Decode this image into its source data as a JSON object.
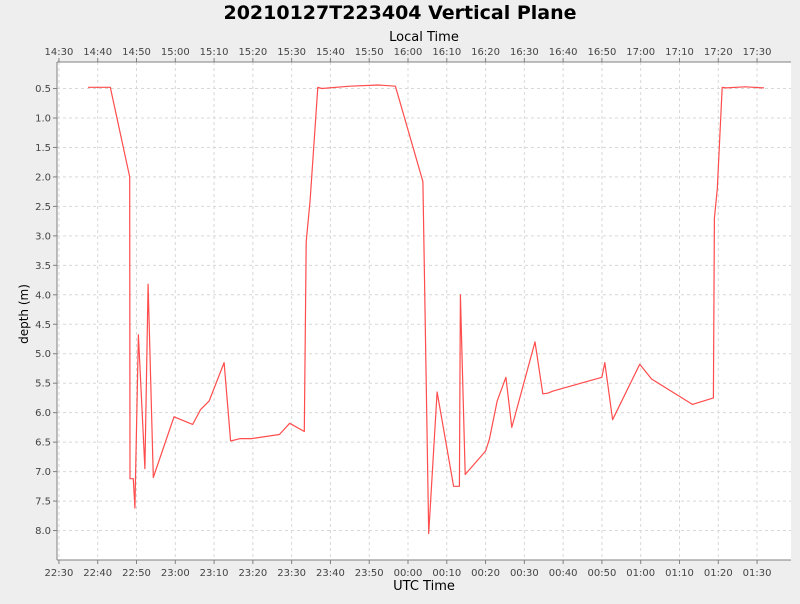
{
  "chart_data": {
    "type": "line",
    "title": "20210127T223404 Vertical Plane",
    "xlabel": "UTC Time",
    "x2label": "Local Time",
    "ylabel": "depth (m)",
    "x_ticks_utc": [
      "22:30",
      "22:40",
      "22:50",
      "23:00",
      "23:10",
      "23:20",
      "23:30",
      "23:40",
      "23:50",
      "00:00",
      "00:10",
      "00:20",
      "00:30",
      "00:40",
      "00:50",
      "01:00",
      "01:10",
      "01:20",
      "01:30"
    ],
    "x_ticks_local": [
      "14:30",
      "14:40",
      "14:50",
      "15:00",
      "15:10",
      "15:20",
      "15:30",
      "15:40",
      "15:50",
      "16:00",
      "16:10",
      "16:20",
      "16:30",
      "16:40",
      "16:50",
      "17:00",
      "17:10",
      "17:20",
      "17:30"
    ],
    "y_ticks": [
      "0.5",
      "1.0",
      "1.5",
      "2.0",
      "2.5",
      "3.0",
      "3.5",
      "4.0",
      "4.5",
      "5.0",
      "5.5",
      "6.0",
      "6.5",
      "7.0",
      "7.5",
      "8.0"
    ],
    "y_tick_values": [
      0.5,
      1.0,
      1.5,
      2.0,
      2.5,
      3.0,
      3.5,
      4.0,
      4.5,
      5.0,
      5.5,
      6.0,
      6.5,
      7.0,
      7.5,
      8.0
    ],
    "ylim": [
      0.05,
      8.5
    ],
    "y_inverted": true,
    "xlim": [
      "2021-01-27T22:29:30Z",
      "2021-01-28T01:38:45Z"
    ],
    "grid": true,
    "series": [
      {
        "color": "#ff4c4c",
        "points": [
          [
            "2021-01-27T22:37:30Z",
            0.48
          ],
          [
            "2021-01-27T22:43:15Z",
            0.48
          ],
          [
            "2021-01-27T22:47:45Z",
            1.85
          ],
          [
            "2021-01-27T22:48:15Z",
            2.0
          ],
          [
            "2021-01-27T22:48:20Z",
            7.12
          ],
          [
            "2021-01-27T22:49:10Z",
            7.12
          ],
          [
            "2021-01-27T22:49:35Z",
            7.62
          ],
          [
            "2021-01-27T22:50:30Z",
            4.68
          ],
          [
            "2021-01-27T22:52:10Z",
            6.95
          ],
          [
            "2021-01-27T22:53:00Z",
            3.82
          ],
          [
            "2021-01-27T22:54:20Z",
            7.1
          ],
          [
            "2021-01-27T22:59:40Z",
            6.07
          ],
          [
            "2021-01-27T23:04:30Z",
            6.2
          ],
          [
            "2021-01-27T23:06:30Z",
            5.95
          ],
          [
            "2021-01-27T23:08:45Z",
            5.8
          ],
          [
            "2021-01-27T23:12:35Z",
            5.15
          ],
          [
            "2021-01-27T23:14:15Z",
            6.48
          ],
          [
            "2021-01-27T23:16:45Z",
            6.44
          ],
          [
            "2021-01-27T23:19:40Z",
            6.44
          ],
          [
            "2021-01-27T23:26:50Z",
            6.37
          ],
          [
            "2021-01-27T23:29:30Z",
            6.18
          ],
          [
            "2021-01-27T23:33:15Z",
            6.32
          ],
          [
            "2021-01-27T23:33:45Z",
            3.1
          ],
          [
            "2021-01-27T23:34:45Z",
            2.4
          ],
          [
            "2021-01-27T23:36:45Z",
            0.48
          ],
          [
            "2021-01-27T23:37:45Z",
            0.5
          ],
          [
            "2021-01-27T23:45:00Z",
            0.46
          ],
          [
            "2021-01-27T23:52:20Z",
            0.44
          ],
          [
            "2021-01-27T23:56:45Z",
            0.46
          ],
          [
            "2021-01-28T00:03:50Z",
            2.08
          ],
          [
            "2021-01-28T00:05:20Z",
            8.05
          ],
          [
            "2021-01-28T00:07:30Z",
            5.65
          ],
          [
            "2021-01-28T00:11:45Z",
            7.25
          ],
          [
            "2021-01-28T00:13:15Z",
            7.25
          ],
          [
            "2021-01-28T00:13:30Z",
            4.0
          ],
          [
            "2021-01-28T00:14:45Z",
            7.05
          ],
          [
            "2021-01-28T00:20:00Z",
            6.65
          ],
          [
            "2021-01-28T00:21:00Z",
            6.45
          ],
          [
            "2021-01-28T00:23:00Z",
            5.8
          ],
          [
            "2021-01-28T00:25:15Z",
            5.4
          ],
          [
            "2021-01-28T00:26:45Z",
            6.25
          ],
          [
            "2021-01-28T00:32:45Z",
            4.8
          ],
          [
            "2021-01-28T00:34:45Z",
            5.68
          ],
          [
            "2021-01-28T00:36:00Z",
            5.67
          ],
          [
            "2021-01-28T00:37:30Z",
            5.63
          ],
          [
            "2021-01-28T00:50:00Z",
            5.4
          ],
          [
            "2021-01-28T00:50:45Z",
            5.15
          ],
          [
            "2021-01-28T00:52:45Z",
            6.12
          ],
          [
            "2021-01-28T00:59:45Z",
            5.18
          ],
          [
            "2021-01-28T01:02:50Z",
            5.43
          ],
          [
            "2021-01-28T01:13:20Z",
            5.86
          ],
          [
            "2021-01-28T01:18:45Z",
            5.75
          ],
          [
            "2021-01-28T01:19:00Z",
            2.7
          ],
          [
            "2021-01-28T01:19:45Z",
            2.2
          ],
          [
            "2021-01-28T01:21:00Z",
            0.48
          ],
          [
            "2021-01-28T01:22:00Z",
            0.49
          ],
          [
            "2021-01-28T01:27:00Z",
            0.47
          ],
          [
            "2021-01-28T01:31:45Z",
            0.49
          ]
        ]
      }
    ]
  }
}
